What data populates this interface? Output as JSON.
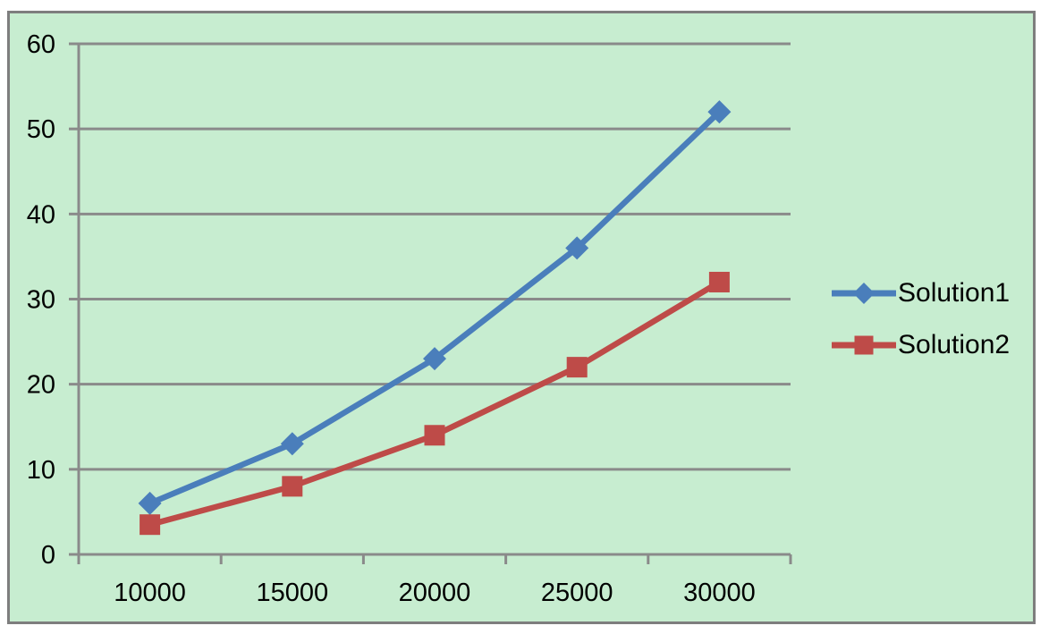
{
  "colors": {
    "page_background": "#ffffff",
    "chart_background": "#c7edd0",
    "chart_border": "#7e7e7e",
    "gridline": "#8a8a8a",
    "axis": "#8a8a8a",
    "text": "#000000",
    "series1": "#4a7ebb",
    "series2": "#be4b48"
  },
  "chart_data": {
    "type": "line",
    "title": "",
    "xlabel": "",
    "ylabel": "",
    "categories": [
      "10000",
      "15000",
      "20000",
      "25000",
      "30000"
    ],
    "x": [
      10000,
      15000,
      20000,
      25000,
      30000
    ],
    "series": [
      {
        "name": "Solution1",
        "values": [
          6,
          13,
          23,
          36,
          52
        ],
        "color": "#4a7ebb",
        "marker": "diamond"
      },
      {
        "name": "Solution2",
        "values": [
          3.5,
          8,
          14,
          22,
          32
        ],
        "color": "#be4b48",
        "marker": "square"
      }
    ],
    "ylim": [
      0,
      60
    ],
    "yticks": [
      0,
      10,
      20,
      30,
      40,
      50,
      60
    ],
    "grid": true,
    "legend_position": "right"
  }
}
